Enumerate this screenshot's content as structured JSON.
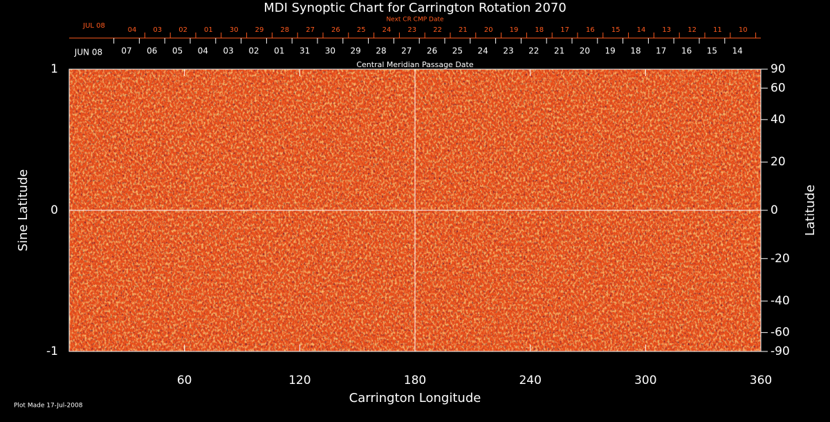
{
  "chart_data": {
    "type": "synoptic",
    "title": "MDI Synoptic Chart for Carrington Rotation 2070",
    "top_axis_title": "Next CR CMP Date",
    "top_axis_month": "JUL 08",
    "top_categories": [
      "04",
      "03",
      "02",
      "01",
      "30",
      "29",
      "28",
      "27",
      "26",
      "25",
      "24",
      "23",
      "22",
      "21",
      "20",
      "19",
      "18",
      "17",
      "16",
      "15",
      "14",
      "13",
      "12",
      "11",
      "10"
    ],
    "date_axis_title": "Central Meridian Passage Date",
    "date_axis_month": "JUN 08",
    "date_categories": [
      "07",
      "06",
      "05",
      "04",
      "03",
      "02",
      "01",
      "31",
      "30",
      "29",
      "28",
      "27",
      "26",
      "25",
      "24",
      "23",
      "22",
      "21",
      "20",
      "19",
      "18",
      "17",
      "16",
      "15",
      "14"
    ],
    "xlabel": "Carrington Longitude",
    "ylabel": "Sine Latitude",
    "y2label": "Latitude",
    "xlim": [
      0,
      360
    ],
    "xticks": [
      60,
      120,
      180,
      240,
      300,
      360
    ],
    "ylim": [
      -1,
      1
    ],
    "yticks": [
      -1,
      0,
      1
    ],
    "y2lim": [
      -90,
      90
    ],
    "y2scale": "sine",
    "y2ticks": [
      90,
      60,
      40,
      20,
      0,
      -20,
      -40,
      -60,
      -90
    ],
    "crosshair_x": 180,
    "crosshair_y": 0,
    "footnote": "Plot Made 17-Jul-2008"
  }
}
